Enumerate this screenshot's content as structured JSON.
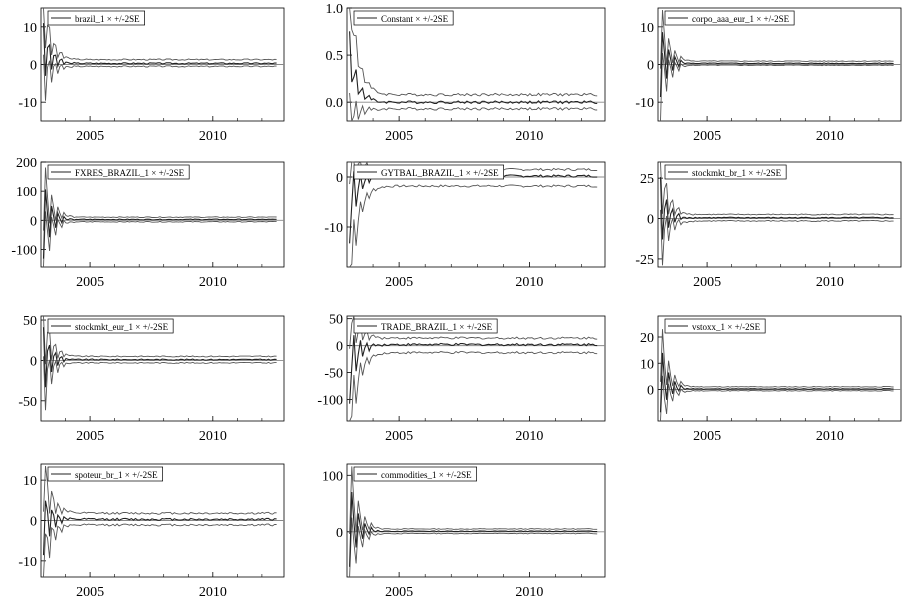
{
  "colors": {
    "estimate": "#222222",
    "band": "#555555",
    "zero": "#888888",
    "frame": "#000000"
  },
  "chart_data": [
    {
      "type": "line",
      "title": "",
      "xlabel": "",
      "ylabel": "",
      "legend": "brazil_1 × +/-2SE",
      "xlim": [
        2003.0,
        2012.9
      ],
      "ylim": [
        -15,
        15
      ],
      "yticks": [
        -10,
        0,
        10
      ],
      "xticks": [
        2005,
        2010
      ],
      "start": 0.6,
      "peak": 12,
      "settle": 0.3,
      "band_pos": 1.0,
      "band_neg": 0.8,
      "spikes": [
        12,
        -5,
        8
      ],
      "legend_pos": "top-left",
      "x_tick_labels": [
        "2005",
        "2010"
      ],
      "y_tick_labels": [
        "-10",
        "0",
        "10"
      ]
    },
    {
      "type": "line",
      "title": "",
      "xlabel": "",
      "ylabel": "",
      "legend": "Constant × +/-2SE",
      "xlim": [
        2003.0,
        2012.9
      ],
      "ylim": [
        -0.2,
        1.0
      ],
      "yticks": [
        0.0,
        0.5,
        1.0
      ],
      "xticks": [
        2005,
        2010
      ],
      "start": 0.6,
      "peak": 0.85,
      "settle": 0.0,
      "band_pos": 0.08,
      "band_neg": 0.07,
      "spikes": [
        0.85,
        0.3,
        0.5
      ],
      "legend_pos": "top-left",
      "x_tick_labels": [
        "2005",
        "2010"
      ],
      "y_tick_labels": [
        "0.0",
        "0.5",
        "1.0"
      ]
    },
    {
      "type": "line",
      "title": "",
      "xlabel": "",
      "ylabel": "",
      "legend": "corpo_aaa_eur_1 × +/-2SE",
      "xlim": [
        2003.0,
        2012.9
      ],
      "ylim": [
        -15,
        15
      ],
      "yticks": [
        -10,
        0,
        10
      ],
      "xticks": [
        2005,
        2010
      ],
      "start": 0.6,
      "peak": 12,
      "settle": 0.3,
      "band_pos": 0.6,
      "band_neg": 0.5,
      "spikes": [
        -10,
        12,
        5
      ],
      "legend_pos": "top-left",
      "x_tick_labels": [
        "2005",
        "2010"
      ],
      "y_tick_labels": [
        "-10",
        "0",
        "10"
      ]
    },
    {
      "type": "line",
      "title": "",
      "xlabel": "",
      "ylabel": "",
      "legend": "FXRES_BRAZIL_1 × +/-2SE",
      "xlim": [
        2003.0,
        2012.9
      ],
      "ylim": [
        -160,
        200
      ],
      "yticks": [
        -100,
        0,
        100,
        200
      ],
      "xticks": [
        2005,
        2010
      ],
      "start": 0.6,
      "peak": 150,
      "settle": 3,
      "band_pos": 8,
      "band_neg": 8,
      "spikes": [
        -150,
        150,
        40
      ],
      "legend_pos": "top-left",
      "x_tick_labels": [
        "2005",
        "2010"
      ],
      "y_tick_labels": [
        "-100",
        "0",
        "100",
        "200"
      ]
    },
    {
      "type": "line",
      "title": "",
      "xlabel": "",
      "ylabel": "",
      "legend": "GYTBAL_BRAZIL_1 × +/-2SE",
      "xlim": [
        2003.0,
        2012.9
      ],
      "ylim": [
        -18,
        3
      ],
      "yticks": [
        -10,
        0
      ],
      "xticks": [
        2005,
        2010
      ],
      "start": 0.6,
      "peak": -15,
      "settle": 0.2,
      "band_pos": 1.3,
      "band_neg": 2.0,
      "spikes": [
        -15,
        -8,
        2
      ],
      "legend_pos": "top-left",
      "x_tick_labels": [
        "2005",
        "2010"
      ],
      "y_tick_labels": [
        "-10",
        "0"
      ]
    },
    {
      "type": "line",
      "title": "",
      "xlabel": "",
      "ylabel": "",
      "legend": "stockmkt_br_1 × +/-2SE",
      "xlim": [
        2003.0,
        2012.9
      ],
      "ylim": [
        -30,
        35
      ],
      "yticks": [
        -25,
        0,
        25
      ],
      "xticks": [
        2005,
        2010
      ],
      "start": 0.6,
      "peak": 28,
      "settle": 0.5,
      "band_pos": 2.0,
      "band_neg": 2.0,
      "spikes": [
        28,
        -20,
        10
      ],
      "legend_pos": "top-left",
      "x_tick_labels": [
        "2005",
        "2010"
      ],
      "y_tick_labels": [
        "-25",
        "0",
        "25"
      ]
    },
    {
      "type": "line",
      "title": "",
      "xlabel": "",
      "ylabel": "",
      "legend": "stockmkt_eur_1 × +/-2SE",
      "xlim": [
        2003.0,
        2012.9
      ],
      "ylim": [
        -75,
        55
      ],
      "yticks": [
        -50,
        0,
        50
      ],
      "xticks": [
        2005,
        2010
      ],
      "start": 0.6,
      "peak": 45,
      "settle": 1,
      "band_pos": 4,
      "band_neg": 4,
      "spikes": [
        45,
        -50,
        20
      ],
      "legend_pos": "top-left",
      "x_tick_labels": [
        "2005",
        "2010"
      ],
      "y_tick_labels": [
        "-50",
        "0",
        "50"
      ]
    },
    {
      "type": "line",
      "title": "",
      "xlabel": "",
      "ylabel": "",
      "legend": "TRADE_BRAZIL_1 × +/-2SE",
      "xlim": [
        2003.0,
        2012.9
      ],
      "ylim": [
        -140,
        55
      ],
      "yticks": [
        -100,
        -50,
        0,
        50
      ],
      "xticks": [
        2005,
        2010
      ],
      "start": 0.6,
      "peak": -120,
      "settle": 2,
      "band_pos": 12,
      "band_neg": 15,
      "spikes": [
        -120,
        -60,
        30
      ],
      "legend_pos": "top-left",
      "x_tick_labels": [
        "2005",
        "2010"
      ],
      "y_tick_labels": [
        "-100",
        "-50",
        "0",
        "50"
      ]
    },
    {
      "type": "line",
      "title": "",
      "xlabel": "",
      "ylabel": "",
      "legend": "vstoxx_1 × +/-2SE",
      "xlim": [
        2003.0,
        2012.9
      ],
      "ylim": [
        -12,
        28
      ],
      "yticks": [
        0,
        10,
        20
      ],
      "xticks": [
        2005,
        2010
      ],
      "start": 0.6,
      "peak": 20,
      "settle": 0.2,
      "band_pos": 0.8,
      "band_neg": 0.7,
      "spikes": [
        -10,
        20,
        6
      ],
      "legend_pos": "top-left",
      "x_tick_labels": [
        "2005",
        "2010"
      ],
      "y_tick_labels": [
        "0",
        "10",
        "20"
      ]
    },
    {
      "type": "line",
      "title": "",
      "xlabel": "",
      "ylabel": "",
      "legend": "spoteur_br_1 × +/-2SE",
      "xlim": [
        2003.0,
        2012.9
      ],
      "ylim": [
        -14,
        14
      ],
      "yticks": [
        -10,
        0,
        10
      ],
      "xticks": [
        2005,
        2010
      ],
      "start": 0.6,
      "peak": -10,
      "settle": 0.3,
      "band_pos": 1.5,
      "band_neg": 1.4,
      "spikes": [
        -10,
        7,
        4
      ],
      "legend_pos": "top-left",
      "x_tick_labels": [
        "2005",
        "2010"
      ],
      "y_tick_labels": [
        "-10",
        "0",
        "10"
      ]
    },
    {
      "type": "line",
      "title": "",
      "xlabel": "",
      "ylabel": "",
      "legend": "commodities_1 × +/-2SE",
      "xlim": [
        2003.0,
        2012.9
      ],
      "ylim": [
        -80,
        120
      ],
      "yticks": [
        0,
        100
      ],
      "xticks": [
        2005,
        2010
      ],
      "start": 0.6,
      "peak": 100,
      "settle": 1,
      "band_pos": 4,
      "band_neg": 4,
      "spikes": [
        -70,
        100,
        30
      ],
      "legend_pos": "top-left",
      "x_tick_labels": [
        "2005",
        "2010"
      ],
      "y_tick_labels": [
        "0",
        "100"
      ]
    }
  ]
}
